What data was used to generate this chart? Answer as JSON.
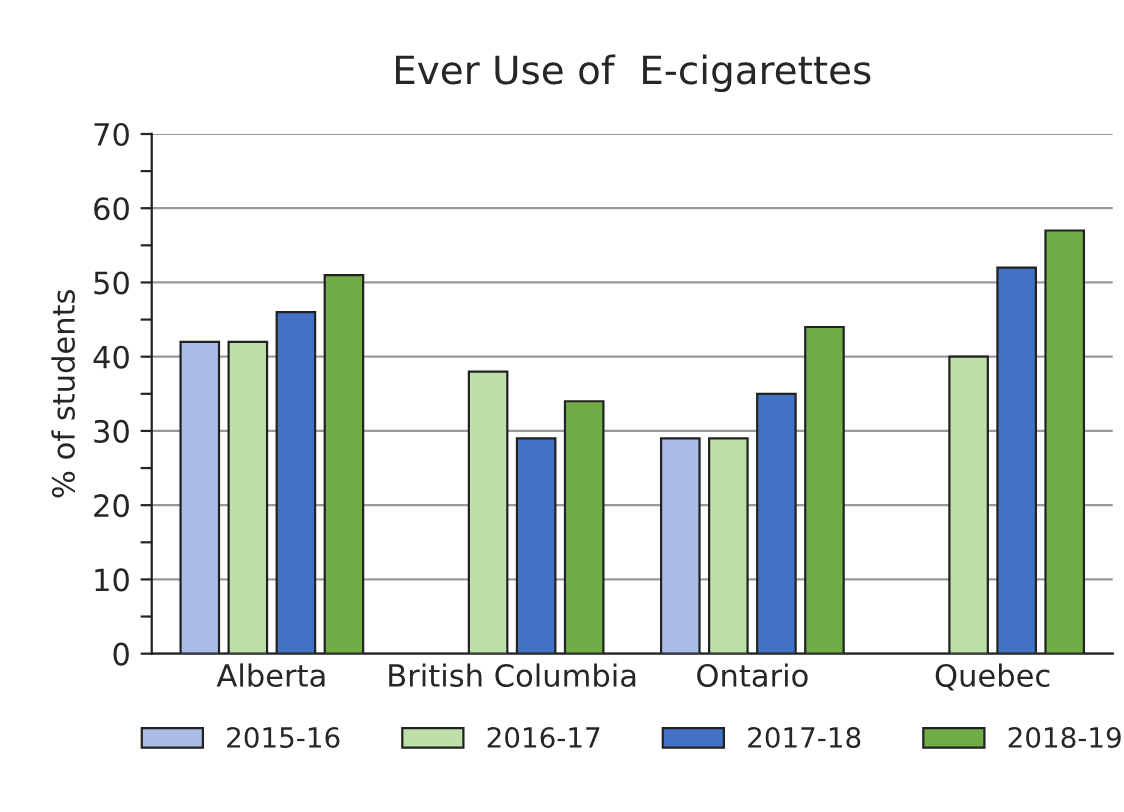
{
  "chart_data": {
    "type": "bar",
    "title": "Ever Use of  E-cigarettes",
    "ylabel": "% of students",
    "categories": [
      "Alberta",
      "British Columbia",
      "Ontario",
      "Quebec"
    ],
    "series": [
      {
        "name": "2015-16",
        "color": "#a9bde6",
        "values": [
          42,
          null,
          29,
          null
        ]
      },
      {
        "name": "2016-17",
        "color": "#bde0a8",
        "values": [
          42,
          38,
          29,
          40
        ]
      },
      {
        "name": "2017-18",
        "color": "#4472c4",
        "values": [
          46,
          29,
          35,
          52
        ]
      },
      {
        "name": "2018-19",
        "color": "#70ad47",
        "values": [
          51,
          34,
          44,
          57
        ]
      }
    ],
    "ylim": [
      0,
      70
    ],
    "yticks": [
      0,
      {
        "value": 5,
        "label": null
      },
      10,
      {
        "value": 15,
        "label": null
      },
      20,
      {
        "value": 25,
        "label": null
      },
      30,
      {
        "value": 35,
        "label": null
      },
      40,
      {
        "value": 45,
        "label": null
      },
      50,
      {
        "value": 55,
        "label": null
      },
      60,
      {
        "value": 65,
        "label": null
      },
      70
    ],
    "grid": "y",
    "legend": "bottom"
  }
}
